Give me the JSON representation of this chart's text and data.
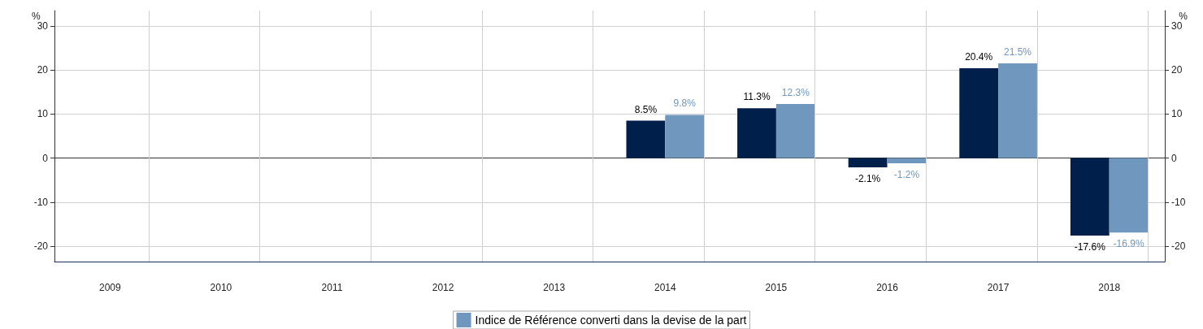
{
  "chart_data": {
    "type": "bar",
    "categories": [
      "2009",
      "2010",
      "2011",
      "2012",
      "2013",
      "2014",
      "2015",
      "2016",
      "2017",
      "2018"
    ],
    "series": [
      {
        "color": "#001f4b",
        "values": [
          null,
          null,
          null,
          null,
          null,
          8.5,
          11.3,
          -2.1,
          20.4,
          -17.6
        ],
        "value_labels": [
          null,
          null,
          null,
          null,
          null,
          "8.5%",
          "11.3%",
          "-2.1%",
          "20.4%",
          "-17.6%"
        ]
      },
      {
        "name": "Indice de Référence converti dans la devise de la part",
        "color": "#7098bf",
        "values": [
          null,
          null,
          null,
          null,
          null,
          9.8,
          12.3,
          -1.2,
          21.5,
          -16.9
        ],
        "value_labels": [
          null,
          null,
          null,
          null,
          null,
          "9.8%",
          "12.3%",
          "-1.2%",
          "21.5%",
          "-16.9%"
        ]
      }
    ],
    "ylabel": "%",
    "y2label": "%",
    "ylim": [
      -23.5,
      33.5
    ],
    "yticks": [
      -20,
      -10,
      0,
      10,
      20,
      30
    ],
    "y2lim": [
      -23.5,
      33.5
    ],
    "y2ticks": [
      -20,
      -10,
      0,
      10,
      20,
      30
    ],
    "grid": true,
    "legend": "bottom"
  }
}
